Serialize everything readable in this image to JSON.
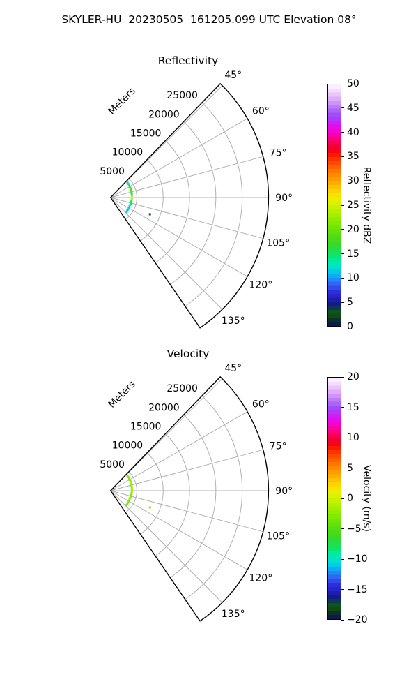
{
  "figure": {
    "suptitle": "SKYLER-HU  20230505  161205.099 UTC Elevation 08°",
    "background": "#ffffff"
  },
  "grid": {
    "gridline_color": "#b0b0b0",
    "spine_color": "#000000"
  },
  "colormap": {
    "description": "shared radar colormap (navy-green-blue-cyan-green-yellow-red-magenta-white)",
    "quantize_levels": 60,
    "stops": [
      [
        0.0,
        "#151a54"
      ],
      [
        0.016,
        "#10154a"
      ],
      [
        0.03,
        "#0e3f10"
      ],
      [
        0.055,
        "#0c5a16"
      ],
      [
        0.072,
        "#0d3f46"
      ],
      [
        0.085,
        "#101a7c"
      ],
      [
        0.1,
        "#1a1a9c"
      ],
      [
        0.12,
        "#2424c4"
      ],
      [
        0.14,
        "#2c2cdc"
      ],
      [
        0.155,
        "#3344ea"
      ],
      [
        0.175,
        "#2f66f3"
      ],
      [
        0.195,
        "#1e90f8"
      ],
      [
        0.215,
        "#08b8f2"
      ],
      [
        0.232,
        "#00d8e0"
      ],
      [
        0.252,
        "#00e8c0"
      ],
      [
        0.272,
        "#00ec9c"
      ],
      [
        0.292,
        "#0ce670"
      ],
      [
        0.312,
        "#20e04a"
      ],
      [
        0.332,
        "#30da30"
      ],
      [
        0.355,
        "#46da1a"
      ],
      [
        0.378,
        "#58de0e"
      ],
      [
        0.4,
        "#6ae406"
      ],
      [
        0.425,
        "#80ea02"
      ],
      [
        0.455,
        "#9cf000"
      ],
      [
        0.482,
        "#bcf200"
      ],
      [
        0.508,
        "#d8f200"
      ],
      [
        0.528,
        "#eeee00"
      ],
      [
        0.548,
        "#fbde00"
      ],
      [
        0.568,
        "#ffc800"
      ],
      [
        0.59,
        "#ffb000"
      ],
      [
        0.612,
        "#ff9800"
      ],
      [
        0.635,
        "#ff7e00"
      ],
      [
        0.658,
        "#ff6200"
      ],
      [
        0.68,
        "#ff4400"
      ],
      [
        0.7,
        "#fd2600"
      ],
      [
        0.72,
        "#f60808"
      ],
      [
        0.74,
        "#f2002e"
      ],
      [
        0.762,
        "#fa005e"
      ],
      [
        0.782,
        "#fc0090"
      ],
      [
        0.802,
        "#f702c2"
      ],
      [
        0.822,
        "#e907ea"
      ],
      [
        0.842,
        "#cb20f6"
      ],
      [
        0.862,
        "#ac3cf8"
      ],
      [
        0.88,
        "#9c52f8"
      ],
      [
        0.9,
        "#b270f8"
      ],
      [
        0.922,
        "#cc8ef9"
      ],
      [
        0.942,
        "#e0acfa"
      ],
      [
        0.962,
        "#eccafb"
      ],
      [
        0.982,
        "#f7e6fd"
      ],
      [
        1.0,
        "#fdf6fe"
      ]
    ]
  },
  "chart_data": [
    {
      "type": "scatter",
      "projection": "polar-sector",
      "title": "Reflectivity",
      "radial_axis_label": "Meters",
      "radial_ticks_m": [
        5000,
        10000,
        15000,
        20000,
        25000
      ],
      "radial_max_m": 30000,
      "azimuth_ticks_deg": [
        45,
        60,
        75,
        90,
        105,
        120,
        135
      ],
      "azimuth_tick_labels": [
        "45°",
        "60°",
        "75°",
        "90°",
        "105°",
        "120°",
        "135°"
      ],
      "azimuth_limits_deg": [
        44,
        145.5
      ],
      "colorbar": {
        "label": "Reflectivity dBZ",
        "vmin": 0,
        "vmax": 50,
        "tick_values": [
          0,
          5,
          10,
          15,
          20,
          25,
          30,
          35,
          40,
          45,
          50
        ],
        "tick_labels": [
          "0",
          "5",
          "10",
          "15",
          "20",
          "25",
          "30",
          "35",
          "40",
          "45",
          "50"
        ]
      },
      "points": [
        {
          "az": 49,
          "r": 4280,
          "v": 11
        },
        {
          "az": 53,
          "r": 4250,
          "v": 13
        },
        {
          "az": 57,
          "r": 4230,
          "v": 14
        },
        {
          "az": 61,
          "r": 4200,
          "v": 17
        },
        {
          "az": 65,
          "r": 4170,
          "v": 20
        },
        {
          "az": 69,
          "r": 4150,
          "v": 18
        },
        {
          "az": 73,
          "r": 4120,
          "v": 21
        },
        {
          "az": 77,
          "r": 4100,
          "v": 18
        },
        {
          "az": 81,
          "r": 4080,
          "v": 12
        },
        {
          "az": 85,
          "r": 4070,
          "v": 23
        },
        {
          "az": 90,
          "r": 4090,
          "v": 26
        },
        {
          "az": 94,
          "r": 4050,
          "v": 24
        },
        {
          "az": 98,
          "r": 4020,
          "v": 19
        },
        {
          "az": 102,
          "r": 4000,
          "v": 13
        },
        {
          "az": 106,
          "r": 3990,
          "v": 15
        },
        {
          "az": 110,
          "r": 3980,
          "v": 12
        },
        {
          "az": 115,
          "r": 3970,
          "v": 14
        },
        {
          "az": 119,
          "r": 3990,
          "v": 11
        },
        {
          "az": 124,
          "r": 4010,
          "v": 12
        },
        {
          "az": 128,
          "r": 4050,
          "v": 10
        },
        {
          "az": 132,
          "r": 4090,
          "v": 12
        },
        {
          "az": 113,
          "r": 8120,
          "v": 2
        }
      ]
    },
    {
      "type": "scatter",
      "projection": "polar-sector",
      "title": "Velocity",
      "radial_axis_label": "Meters",
      "radial_ticks_m": [
        5000,
        10000,
        15000,
        20000,
        25000
      ],
      "radial_max_m": 30000,
      "azimuth_ticks_deg": [
        45,
        60,
        75,
        90,
        105,
        120,
        135
      ],
      "azimuth_tick_labels": [
        "45°",
        "60°",
        "75°",
        "90°",
        "105°",
        "120°",
        "135°"
      ],
      "azimuth_limits_deg": [
        44,
        145.5
      ],
      "colorbar": {
        "label": "Velocity (m/s)",
        "vmin": -20,
        "vmax": 20,
        "tick_values": [
          -20,
          -15,
          -10,
          -5,
          0,
          5,
          10,
          15,
          20
        ],
        "tick_labels": [
          "−20",
          "−15",
          "−10",
          "−5",
          "0",
          "5",
          "10",
          "15",
          "20"
        ]
      },
      "points": [
        {
          "az": 49,
          "r": 4280,
          "v": -3
        },
        {
          "az": 53,
          "r": 4250,
          "v": -2.5
        },
        {
          "az": 57,
          "r": 4230,
          "v": -3
        },
        {
          "az": 61,
          "r": 4200,
          "v": -2
        },
        {
          "az": 65,
          "r": 4170,
          "v": -2.5
        },
        {
          "az": 69,
          "r": 4150,
          "v": -1.5
        },
        {
          "az": 73,
          "r": 4120,
          "v": -2
        },
        {
          "az": 77,
          "r": 4100,
          "v": -2.5
        },
        {
          "az": 81,
          "r": 4080,
          "v": -3
        },
        {
          "az": 85,
          "r": 4070,
          "v": -2
        },
        {
          "az": 90,
          "r": 4090,
          "v": -1.5
        },
        {
          "az": 94,
          "r": 4050,
          "v": -2
        },
        {
          "az": 98,
          "r": 4020,
          "v": -2.5
        },
        {
          "az": 102,
          "r": 4000,
          "v": -3
        },
        {
          "az": 106,
          "r": 3990,
          "v": -2.5
        },
        {
          "az": 110,
          "r": 3980,
          "v": -3
        },
        {
          "az": 115,
          "r": 3970,
          "v": -2.5
        },
        {
          "az": 119,
          "r": 3990,
          "v": -3
        },
        {
          "az": 124,
          "r": 4010,
          "v": -3.5
        },
        {
          "az": 128,
          "r": 4050,
          "v": -3
        },
        {
          "az": 132,
          "r": 4090,
          "v": -3.5
        },
        {
          "az": 113,
          "r": 8120,
          "v": -2.5
        }
      ]
    }
  ]
}
